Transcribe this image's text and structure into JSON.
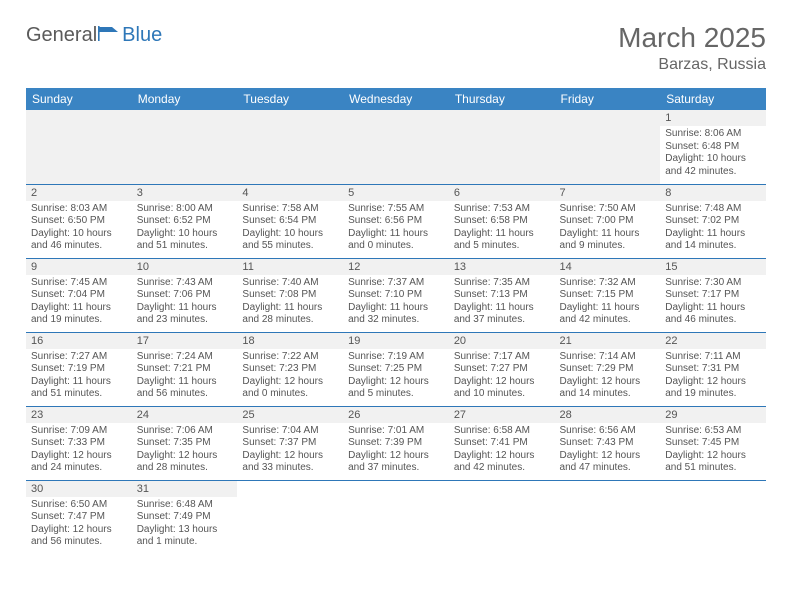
{
  "logo": {
    "part1": "General",
    "part2": "Blue",
    "color1": "#5a5a5a",
    "color2": "#2e77b8"
  },
  "title": "March 2025",
  "location": "Barzas, Russia",
  "header_bg": "#3a84c3",
  "divider_color": "#2e77b8",
  "empty_bg": "#f1f1f1",
  "day_headers": [
    "Sunday",
    "Monday",
    "Tuesday",
    "Wednesday",
    "Thursday",
    "Friday",
    "Saturday"
  ],
  "weeks": [
    [
      null,
      null,
      null,
      null,
      null,
      null,
      {
        "d": "1",
        "sr": "Sunrise: 8:06 AM",
        "ss": "Sunset: 6:48 PM",
        "dl1": "Daylight: 10 hours",
        "dl2": "and 42 minutes."
      }
    ],
    [
      {
        "d": "2",
        "sr": "Sunrise: 8:03 AM",
        "ss": "Sunset: 6:50 PM",
        "dl1": "Daylight: 10 hours",
        "dl2": "and 46 minutes."
      },
      {
        "d": "3",
        "sr": "Sunrise: 8:00 AM",
        "ss": "Sunset: 6:52 PM",
        "dl1": "Daylight: 10 hours",
        "dl2": "and 51 minutes."
      },
      {
        "d": "4",
        "sr": "Sunrise: 7:58 AM",
        "ss": "Sunset: 6:54 PM",
        "dl1": "Daylight: 10 hours",
        "dl2": "and 55 minutes."
      },
      {
        "d": "5",
        "sr": "Sunrise: 7:55 AM",
        "ss": "Sunset: 6:56 PM",
        "dl1": "Daylight: 11 hours",
        "dl2": "and 0 minutes."
      },
      {
        "d": "6",
        "sr": "Sunrise: 7:53 AM",
        "ss": "Sunset: 6:58 PM",
        "dl1": "Daylight: 11 hours",
        "dl2": "and 5 minutes."
      },
      {
        "d": "7",
        "sr": "Sunrise: 7:50 AM",
        "ss": "Sunset: 7:00 PM",
        "dl1": "Daylight: 11 hours",
        "dl2": "and 9 minutes."
      },
      {
        "d": "8",
        "sr": "Sunrise: 7:48 AM",
        "ss": "Sunset: 7:02 PM",
        "dl1": "Daylight: 11 hours",
        "dl2": "and 14 minutes."
      }
    ],
    [
      {
        "d": "9",
        "sr": "Sunrise: 7:45 AM",
        "ss": "Sunset: 7:04 PM",
        "dl1": "Daylight: 11 hours",
        "dl2": "and 19 minutes."
      },
      {
        "d": "10",
        "sr": "Sunrise: 7:43 AM",
        "ss": "Sunset: 7:06 PM",
        "dl1": "Daylight: 11 hours",
        "dl2": "and 23 minutes."
      },
      {
        "d": "11",
        "sr": "Sunrise: 7:40 AM",
        "ss": "Sunset: 7:08 PM",
        "dl1": "Daylight: 11 hours",
        "dl2": "and 28 minutes."
      },
      {
        "d": "12",
        "sr": "Sunrise: 7:37 AM",
        "ss": "Sunset: 7:10 PM",
        "dl1": "Daylight: 11 hours",
        "dl2": "and 32 minutes."
      },
      {
        "d": "13",
        "sr": "Sunrise: 7:35 AM",
        "ss": "Sunset: 7:13 PM",
        "dl1": "Daylight: 11 hours",
        "dl2": "and 37 minutes."
      },
      {
        "d": "14",
        "sr": "Sunrise: 7:32 AM",
        "ss": "Sunset: 7:15 PM",
        "dl1": "Daylight: 11 hours",
        "dl2": "and 42 minutes."
      },
      {
        "d": "15",
        "sr": "Sunrise: 7:30 AM",
        "ss": "Sunset: 7:17 PM",
        "dl1": "Daylight: 11 hours",
        "dl2": "and 46 minutes."
      }
    ],
    [
      {
        "d": "16",
        "sr": "Sunrise: 7:27 AM",
        "ss": "Sunset: 7:19 PM",
        "dl1": "Daylight: 11 hours",
        "dl2": "and 51 minutes."
      },
      {
        "d": "17",
        "sr": "Sunrise: 7:24 AM",
        "ss": "Sunset: 7:21 PM",
        "dl1": "Daylight: 11 hours",
        "dl2": "and 56 minutes."
      },
      {
        "d": "18",
        "sr": "Sunrise: 7:22 AM",
        "ss": "Sunset: 7:23 PM",
        "dl1": "Daylight: 12 hours",
        "dl2": "and 0 minutes."
      },
      {
        "d": "19",
        "sr": "Sunrise: 7:19 AM",
        "ss": "Sunset: 7:25 PM",
        "dl1": "Daylight: 12 hours",
        "dl2": "and 5 minutes."
      },
      {
        "d": "20",
        "sr": "Sunrise: 7:17 AM",
        "ss": "Sunset: 7:27 PM",
        "dl1": "Daylight: 12 hours",
        "dl2": "and 10 minutes."
      },
      {
        "d": "21",
        "sr": "Sunrise: 7:14 AM",
        "ss": "Sunset: 7:29 PM",
        "dl1": "Daylight: 12 hours",
        "dl2": "and 14 minutes."
      },
      {
        "d": "22",
        "sr": "Sunrise: 7:11 AM",
        "ss": "Sunset: 7:31 PM",
        "dl1": "Daylight: 12 hours",
        "dl2": "and 19 minutes."
      }
    ],
    [
      {
        "d": "23",
        "sr": "Sunrise: 7:09 AM",
        "ss": "Sunset: 7:33 PM",
        "dl1": "Daylight: 12 hours",
        "dl2": "and 24 minutes."
      },
      {
        "d": "24",
        "sr": "Sunrise: 7:06 AM",
        "ss": "Sunset: 7:35 PM",
        "dl1": "Daylight: 12 hours",
        "dl2": "and 28 minutes."
      },
      {
        "d": "25",
        "sr": "Sunrise: 7:04 AM",
        "ss": "Sunset: 7:37 PM",
        "dl1": "Daylight: 12 hours",
        "dl2": "and 33 minutes."
      },
      {
        "d": "26",
        "sr": "Sunrise: 7:01 AM",
        "ss": "Sunset: 7:39 PM",
        "dl1": "Daylight: 12 hours",
        "dl2": "and 37 minutes."
      },
      {
        "d": "27",
        "sr": "Sunrise: 6:58 AM",
        "ss": "Sunset: 7:41 PM",
        "dl1": "Daylight: 12 hours",
        "dl2": "and 42 minutes."
      },
      {
        "d": "28",
        "sr": "Sunrise: 6:56 AM",
        "ss": "Sunset: 7:43 PM",
        "dl1": "Daylight: 12 hours",
        "dl2": "and 47 minutes."
      },
      {
        "d": "29",
        "sr": "Sunrise: 6:53 AM",
        "ss": "Sunset: 7:45 PM",
        "dl1": "Daylight: 12 hours",
        "dl2": "and 51 minutes."
      }
    ],
    [
      {
        "d": "30",
        "sr": "Sunrise: 6:50 AM",
        "ss": "Sunset: 7:47 PM",
        "dl1": "Daylight: 12 hours",
        "dl2": "and 56 minutes."
      },
      {
        "d": "31",
        "sr": "Sunrise: 6:48 AM",
        "ss": "Sunset: 7:49 PM",
        "dl1": "Daylight: 13 hours",
        "dl2": "and 1 minute."
      },
      null,
      null,
      null,
      null,
      null
    ]
  ]
}
